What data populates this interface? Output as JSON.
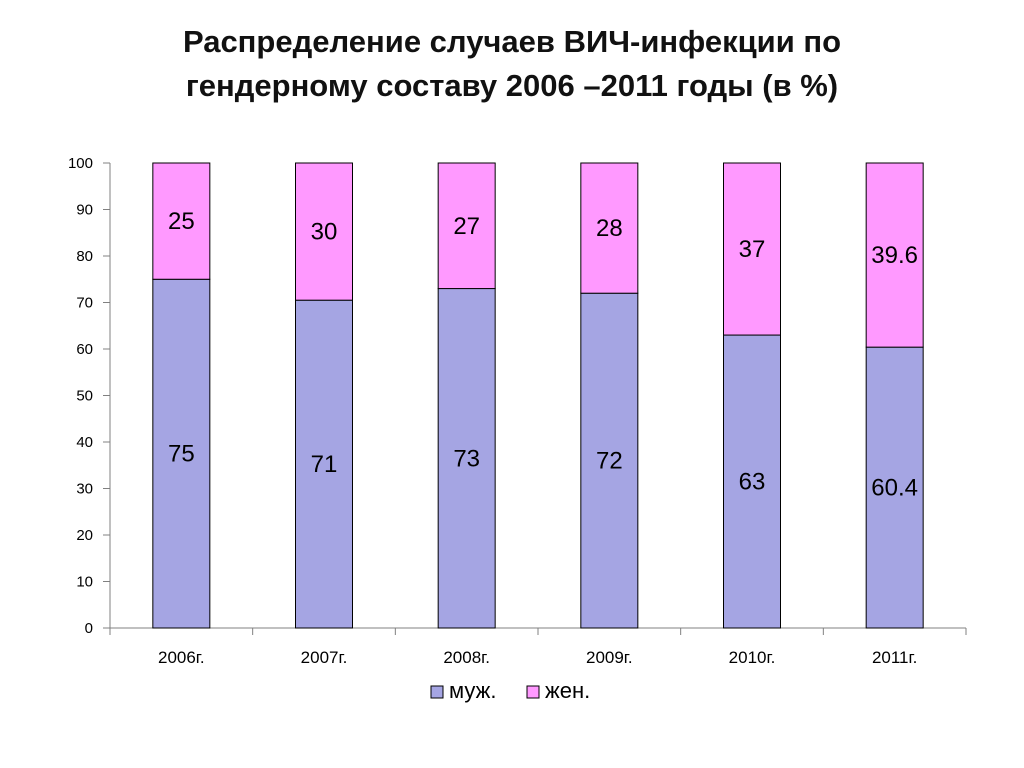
{
  "title_lines": [
    "Распределение случаев ВИЧ-инфекции по",
    "гендерному составу  2006 –2011 годы (в %)"
  ],
  "chart_data": {
    "type": "bar",
    "stacked": true,
    "categories": [
      "2006г.",
      "2007г.",
      "2008г.",
      "2009г.",
      "2010г.",
      "2011г."
    ],
    "series": [
      {
        "name": "муж.",
        "values": [
          75,
          70.5,
          73,
          72,
          63,
          60.4
        ],
        "labels": [
          "75",
          "71",
          "73",
          "72",
          "63",
          "60.4"
        ],
        "color": "#a5a5e3"
      },
      {
        "name": "жен.",
        "values": [
          25,
          29.5,
          27,
          28,
          37,
          39.6
        ],
        "labels": [
          "25",
          "30",
          "27",
          "28",
          "37",
          "39.6"
        ],
        "color": "#ff99ff"
      }
    ],
    "ylim": [
      0,
      100
    ],
    "yticks": [
      "0",
      "10",
      "20",
      "30",
      "40",
      "50",
      "60",
      "70",
      "80",
      "90",
      "100"
    ],
    "grid": false,
    "legend_position": "bottom"
  }
}
